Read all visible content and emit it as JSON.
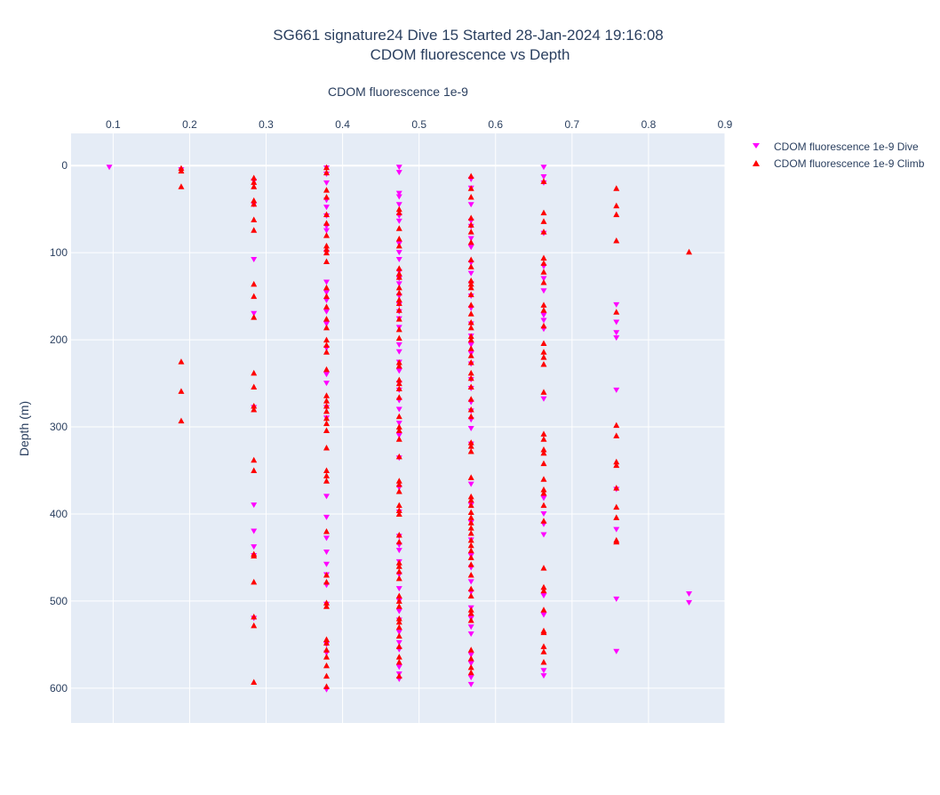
{
  "chart_data": {
    "type": "scatter",
    "title": "SG661 signature24 Dive 15 Started 28-Jan-2024 19:16:08",
    "subtitle": "CDOM fluorescence vs Depth",
    "xlabel": "CDOM fluorescence 1e-9",
    "ylabel": "Depth (m)",
    "xlim": [
      0.045,
      0.9
    ],
    "ylim": [
      640,
      -37
    ],
    "x_axis_position": "top",
    "y_reversed": true,
    "grid": true,
    "legend_position": "top-right",
    "x_ticks": [
      "0.1",
      "0.2",
      "0.3",
      "0.4",
      "0.5",
      "0.6",
      "0.7",
      "0.8",
      "0.9"
    ],
    "y_ticks": [
      "0",
      "100",
      "200",
      "300",
      "400",
      "500",
      "600"
    ],
    "series": [
      {
        "name": "CDOM fluorescence 1e-9 Dive",
        "marker": "triangle-down",
        "color": "#ff00ff",
        "columns": [
          {
            "x": 0.095,
            "depths": [
              2
            ]
          },
          {
            "x": 0.189,
            "depths": [
              5
            ]
          },
          {
            "x": 0.284,
            "depths": [
              18,
              45,
              108,
              170,
              278,
              390,
              420,
              438,
              448,
              520
            ]
          },
          {
            "x": 0.379,
            "depths": [
              3,
              10,
              20,
              40,
              48,
              58,
              70,
              75,
              100,
              134,
              146,
              155,
              168,
              182,
              210,
              240,
              250,
              278,
              290,
              380,
              404,
              428,
              444,
              458,
              470,
              482,
              504,
              550,
              560,
              602
            ]
          },
          {
            "x": 0.474,
            "depths": [
              2,
              8,
              32,
              36,
              45,
              58,
              64,
              90,
              100,
              108,
              122,
              130,
              136,
              150,
              160,
              168,
              176,
              186,
              206,
              214,
              226,
              236,
              250,
              258,
              270,
              280,
              296,
              310,
              336,
              370,
              398,
              426,
              436,
              442,
              455,
              470,
              486,
              500,
              512,
              522,
              536,
              548,
              556,
              576,
              584,
              590
            ]
          },
          {
            "x": 0.568,
            "depths": [
              16,
              26,
              45,
              64,
              70,
              84,
              94,
              112,
              124,
              136,
              150,
              164,
              182,
              196,
              206,
              216,
              228,
              246,
              256,
              272,
              282,
              292,
              302,
              320,
              366,
              390,
              410,
              430,
              448,
              462,
              478,
              490,
              508,
              520,
              530,
              538,
              562,
              572,
              588,
              596
            ]
          },
          {
            "x": 0.663,
            "depths": [
              2,
              13,
              20,
              78,
              116,
              130,
              144,
              172,
              178,
              188,
              268,
              382,
              400,
              412,
              424,
              494,
              516,
              580,
              586
            ]
          },
          {
            "x": 0.758,
            "depths": [
              160,
              180,
              192,
              198,
              258,
              372,
              418,
              498,
              558
            ]
          },
          {
            "x": 0.853,
            "depths": [
              492,
              502
            ]
          }
        ]
      },
      {
        "name": "CDOM fluorescence 1e-9 Climb",
        "marker": "triangle-up",
        "color": "#ff0000",
        "columns": [
          {
            "x": 0.189,
            "depths": [
              3,
              6,
              24,
              225,
              259,
              293
            ]
          },
          {
            "x": 0.284,
            "depths": [
              14,
              19,
              24,
              40,
              44,
              62,
              74,
              136,
              150,
              174,
              238,
              254,
              276,
              280,
              338,
              350,
              446,
              448,
              478,
              518,
              528,
              593
            ]
          },
          {
            "x": 0.379,
            "depths": [
              2,
              8,
              28,
              36,
              56,
              66,
              80,
              92,
              96,
              100,
              110,
              140,
              150,
              162,
              176,
              186,
              200,
              206,
              214,
              234,
              264,
              270,
              276,
              282,
              290,
              296,
              304,
              324,
              350,
              356,
              362,
              420,
              470,
              478,
              502,
              506,
              544,
              548,
              556,
              564,
              574,
              586,
              598
            ]
          },
          {
            "x": 0.474,
            "depths": [
              50,
              54,
              72,
              84,
              92,
              118,
              124,
              128,
              140,
              146,
              154,
              158,
              166,
              176,
              188,
              198,
              226,
              230,
              246,
              250,
              256,
              266,
              288,
              300,
              304,
              314,
              334,
              362,
              366,
              374,
              390,
              396,
              400,
              424,
              432,
              456,
              460,
              466,
              474,
              494,
              500,
              506,
              520,
              524,
              530,
              540,
              552,
              564,
              570,
              586
            ]
          },
          {
            "x": 0.568,
            "depths": [
              12,
              26,
              36,
              60,
              68,
              76,
              88,
              108,
              116,
              132,
              136,
              140,
              148,
              160,
              170,
              180,
              186,
              196,
              200,
              210,
              218,
              226,
              238,
              244,
              254,
              268,
              280,
              288,
              318,
              322,
              328,
              358,
              380,
              384,
              390,
              398,
              404,
              410,
              416,
              422,
              430,
              436,
              442,
              450,
              458,
              470,
              486,
              494,
              510,
              514,
              522,
              556,
              566,
              576,
              582
            ]
          },
          {
            "x": 0.663,
            "depths": [
              18,
              54,
              64,
              76,
              106,
              112,
              122,
              134,
              160,
              166,
              184,
              204,
              214,
              220,
              228,
              260,
              308,
              314,
              326,
              330,
              342,
              360,
              372,
              376,
              390,
              408,
              462,
              484,
              488,
              510,
              534,
              536,
              552,
              558,
              570
            ]
          },
          {
            "x": 0.758,
            "depths": [
              26,
              46,
              56,
              86,
              168,
              298,
              310,
              340,
              344,
              370,
              392,
              404,
              430,
              432
            ]
          },
          {
            "x": 0.853,
            "depths": [
              99
            ]
          }
        ]
      }
    ]
  }
}
